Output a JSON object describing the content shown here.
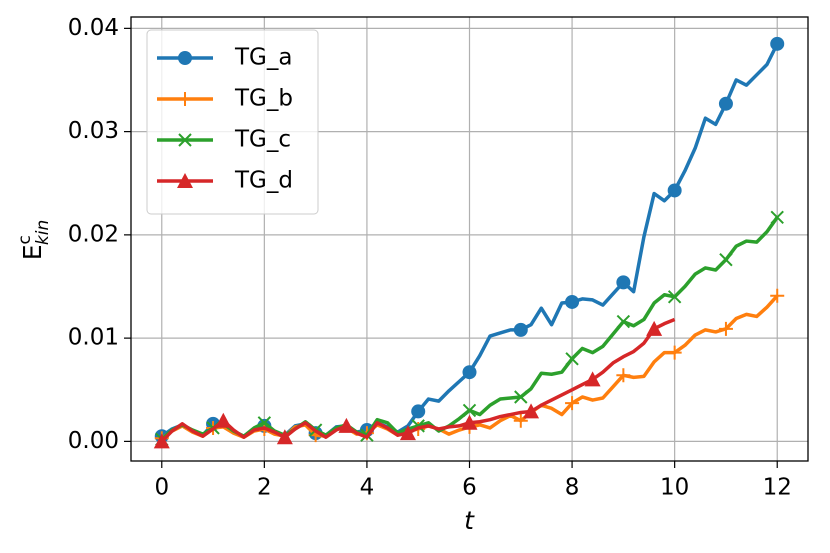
{
  "chart_data": {
    "type": "line",
    "x_label": "t",
    "y_label": {
      "base": "E",
      "sup": "c",
      "sub": "kin"
    },
    "x": [
      0,
      0.2,
      0.4,
      0.6,
      0.8,
      1,
      1.2,
      1.4,
      1.6,
      1.8,
      2,
      2.2,
      2.4,
      2.6,
      2.8,
      3,
      3.2,
      3.4,
      3.6,
      3.8,
      4,
      4.2,
      4.4,
      4.6,
      4.8,
      5,
      5.2,
      5.4,
      5.6,
      5.8,
      6,
      6.2,
      6.4,
      6.6,
      6.8,
      7,
      7.2,
      7.4,
      7.6,
      7.8,
      8,
      8.2,
      8.4,
      8.6,
      8.8,
      9,
      9.2,
      9.4,
      9.6,
      9.8,
      10,
      10.2,
      10.4,
      10.6,
      10.8,
      11,
      11.2,
      11.4,
      11.6,
      11.8,
      12
    ],
    "series": [
      {
        "name": "TG_a",
        "color": "#1f77b4",
        "marker": "circle",
        "markevery": 5,
        "values": [
          0.0005,
          0.0012,
          0.0016,
          0.001,
          0.0006,
          0.0017,
          0.0016,
          0.0009,
          0.0005,
          0.0012,
          0.0015,
          0.0009,
          0.0006,
          0.0015,
          0.0017,
          0.0008,
          0.0006,
          0.0014,
          0.0015,
          0.0009,
          0.0011,
          0.0018,
          0.0014,
          0.0009,
          0.0015,
          0.0029,
          0.0041,
          0.0039,
          0.0049,
          0.0058,
          0.0067,
          0.0083,
          0.0102,
          0.0105,
          0.0108,
          0.0108,
          0.0113,
          0.0129,
          0.0113,
          0.0134,
          0.0135,
          0.0138,
          0.0137,
          0.0132,
          0.0143,
          0.0154,
          0.0145,
          0.0198,
          0.024,
          0.0233,
          0.0243,
          0.0262,
          0.0284,
          0.0313,
          0.0307,
          0.0327,
          0.035,
          0.0345,
          0.0355,
          0.0365,
          0.0385
        ]
      },
      {
        "name": "TG_b",
        "color": "#ff7f0e",
        "marker": "plus",
        "markevery": 5,
        "values": [
          0.0003,
          0.001,
          0.0015,
          0.0009,
          0.0005,
          0.0013,
          0.0014,
          0.0008,
          0.0004,
          0.001,
          0.0012,
          0.0007,
          0.0005,
          0.0014,
          0.0016,
          0.0006,
          0.0005,
          0.0012,
          0.0013,
          0.0007,
          0.0008,
          0.0016,
          0.0012,
          0.0006,
          0.001,
          0.0012,
          0.0015,
          0.0012,
          0.0007,
          0.0011,
          0.0014,
          0.0016,
          0.0013,
          0.002,
          0.0025,
          0.002,
          0.0028,
          0.0035,
          0.0032,
          0.0026,
          0.0037,
          0.0043,
          0.004,
          0.0042,
          0.0053,
          0.0064,
          0.0062,
          0.0063,
          0.0077,
          0.0086,
          0.0086,
          0.0093,
          0.0103,
          0.0108,
          0.0106,
          0.0109,
          0.0119,
          0.0123,
          0.0121,
          0.013,
          0.0141
        ]
      },
      {
        "name": "TG_c",
        "color": "#2ca02c",
        "marker": "x",
        "markevery": 5,
        "values": [
          0.0002,
          0.0011,
          0.0016,
          0.0011,
          0.0007,
          0.0013,
          0.0017,
          0.001,
          0.0005,
          0.0013,
          0.0018,
          0.001,
          0.0006,
          0.0012,
          0.0019,
          0.0011,
          0.0006,
          0.0013,
          0.0016,
          0.0009,
          0.0006,
          0.0021,
          0.0018,
          0.0008,
          0.0012,
          0.0015,
          0.0018,
          0.001,
          0.0015,
          0.0022,
          0.003,
          0.0026,
          0.0035,
          0.0041,
          0.0042,
          0.0043,
          0.0051,
          0.0066,
          0.0065,
          0.0067,
          0.008,
          0.009,
          0.0086,
          0.0092,
          0.0104,
          0.0116,
          0.0112,
          0.0118,
          0.0134,
          0.0142,
          0.014,
          0.015,
          0.0162,
          0.0168,
          0.0166,
          0.0176,
          0.0189,
          0.0194,
          0.0193,
          0.0203,
          0.0217
        ]
      },
      {
        "name": "TG_d",
        "color": "#d62728",
        "marker": "triangle",
        "markevery": 6,
        "values": [
          0,
          0.001,
          0.0017,
          0.001,
          0.0005,
          0.0012,
          0.002,
          0.0011,
          0.0004,
          0.0011,
          0.0013,
          0.0009,
          0.0004,
          0.0012,
          0.0018,
          0.001,
          0.0004,
          0.0011,
          0.0015,
          0.0008,
          0.0004,
          0.0018,
          0.0013,
          0.0006,
          0.0008,
          0.0013,
          0.0015,
          0.0012,
          0.0014,
          0.0015,
          0.0018,
          0.0019,
          0.0021,
          0.0024,
          0.0026,
          0.0028,
          0.0029,
          0.0035,
          0.004,
          0.0045,
          0.005,
          0.0055,
          0.006,
          0.0067,
          0.0076,
          0.0082,
          0.0087,
          0.0095,
          0.0109,
          0.0114,
          0.0118,
          null,
          null,
          null,
          null,
          null,
          null,
          null,
          null,
          null,
          null
        ]
      }
    ],
    "xlim": [
      -0.6,
      12.6
    ],
    "xticks": [
      0,
      2,
      4,
      6,
      8,
      10,
      12
    ],
    "ylim": [
      -0.0019,
      0.0411
    ],
    "yticks": [
      {
        "value": 0,
        "label": "0.00"
      },
      {
        "value": 0.01,
        "label": "0.01"
      },
      {
        "value": 0.02,
        "label": "0.02"
      },
      {
        "value": 0.03,
        "label": "0.03"
      },
      {
        "value": 0.04,
        "label": "0.04"
      }
    ],
    "grid": true,
    "legend": "upper left"
  }
}
